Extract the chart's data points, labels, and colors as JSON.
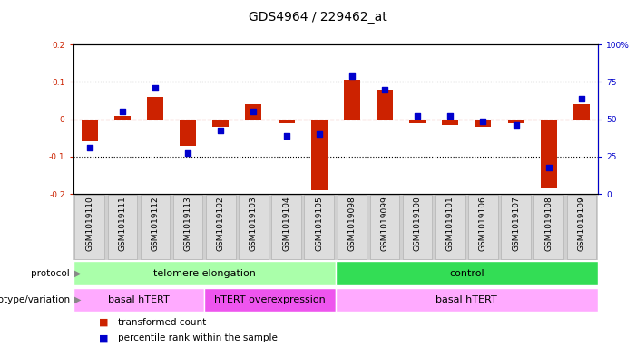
{
  "title": "GDS4964 / 229462_at",
  "samples": [
    "GSM1019110",
    "GSM1019111",
    "GSM1019112",
    "GSM1019113",
    "GSM1019102",
    "GSM1019103",
    "GSM1019104",
    "GSM1019105",
    "GSM1019098",
    "GSM1019099",
    "GSM1019100",
    "GSM1019101",
    "GSM1019106",
    "GSM1019107",
    "GSM1019108",
    "GSM1019109"
  ],
  "red_values": [
    -0.06,
    0.01,
    0.06,
    -0.07,
    -0.02,
    0.04,
    -0.01,
    -0.19,
    0.105,
    0.08,
    -0.01,
    -0.015,
    -0.02,
    -0.01,
    -0.185,
    0.04
  ],
  "blue_values": [
    -0.075,
    0.02,
    0.085,
    -0.09,
    -0.03,
    0.02,
    -0.045,
    -0.04,
    0.115,
    0.08,
    0.01,
    0.01,
    -0.005,
    -0.015,
    -0.13,
    0.055
  ],
  "ylim": [
    -0.2,
    0.2
  ],
  "yticks_left": [
    -0.2,
    -0.1,
    0.0,
    0.1,
    0.2
  ],
  "ytick_labels_left": [
    "-0.2",
    "-0.1",
    "0",
    "0.1",
    "0.2"
  ],
  "right_ytick_pct": [
    0,
    25,
    50,
    75,
    100
  ],
  "right_ylabels": [
    "0",
    "25",
    "50",
    "75",
    "100%"
  ],
  "protocol_groups": [
    {
      "label": "telomere elongation",
      "start": 0,
      "end": 8,
      "color": "#aaffaa"
    },
    {
      "label": "control",
      "start": 8,
      "end": 16,
      "color": "#33dd55"
    }
  ],
  "genotype_groups": [
    {
      "label": "basal hTERT",
      "start": 0,
      "end": 4,
      "color": "#ffaaff"
    },
    {
      "label": "hTERT overexpression",
      "start": 4,
      "end": 8,
      "color": "#ee55ee"
    },
    {
      "label": "basal hTERT",
      "start": 8,
      "end": 16,
      "color": "#ffaaff"
    }
  ],
  "red_color": "#CC2200",
  "blue_color": "#0000CC",
  "bar_width": 0.5,
  "blue_square_size": 20,
  "protocol_label": "protocol",
  "genotype_label": "genotype/variation",
  "legend_red": "transformed count",
  "legend_blue": "percentile rank within the sample",
  "title_fontsize": 10,
  "tick_fontsize": 6.5,
  "annot_fontsize": 8,
  "label_fontsize": 7.5,
  "sample_bg": "#d0d0d0",
  "sample_cell_bg": "#cccccc"
}
